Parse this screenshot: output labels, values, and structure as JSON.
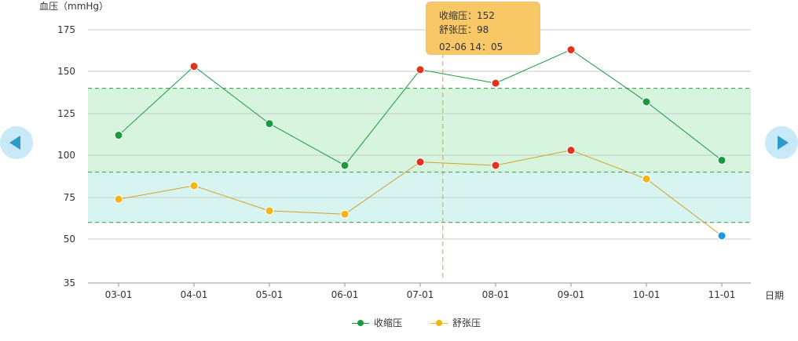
{
  "chart_data": {
    "type": "line",
    "ylabel": "血压（mmHg）",
    "xlabel": "日期",
    "categories": [
      "03-01",
      "04-01",
      "05-01",
      "06-01",
      "07-01",
      "08-01",
      "09-01",
      "10-01",
      "11-01"
    ],
    "y_ticks": [
      35,
      50,
      75,
      100,
      125,
      150,
      175
    ],
    "ylim": [
      35,
      175
    ],
    "grid": true,
    "series": [
      {
        "name": "收缩压",
        "color": "#1a9a3e",
        "values": [
          112,
          153,
          119,
          94,
          151,
          143,
          163,
          132,
          97
        ],
        "point_colors": [
          "#1a9a3e",
          "#e5321e",
          "#1a9a3e",
          "#1a9a3e",
          "#e5321e",
          "#e5321e",
          "#e5321e",
          "#1a9a3e",
          "#1a9a3e"
        ]
      },
      {
        "name": "舒张压",
        "color": "#d6a12a",
        "values": [
          74,
          82,
          67,
          65,
          96,
          94,
          103,
          86,
          52
        ],
        "point_colors": [
          "#f2b416",
          "#f2b416",
          "#f2b416",
          "#f2b416",
          "#e5321e",
          "#e5321e",
          "#e5321e",
          "#f2b416",
          "#1c97e2"
        ]
      }
    ],
    "bands": [
      {
        "from": 90,
        "to": 140,
        "color": "#d7f4df"
      },
      {
        "from": 60,
        "to": 90,
        "color": "#d7f4f1"
      }
    ],
    "reference_lines": [
      60,
      90,
      140
    ],
    "crosshair_x": 4.3,
    "legend_position": "bottom-center"
  },
  "tooltip": {
    "systolic": "收缩压：152",
    "diastolic": "舒张压：98",
    "time": "02-06  14：05"
  },
  "nav": {
    "prev_icon": "arrow-left-icon",
    "next_icon": "arrow-right-icon"
  },
  "colors": {
    "nav_bg": "#c8e9f7",
    "nav_arrow": "#2b99cc",
    "tooltip_bg": "#f8c866",
    "crosshair": "#e89a3a"
  }
}
